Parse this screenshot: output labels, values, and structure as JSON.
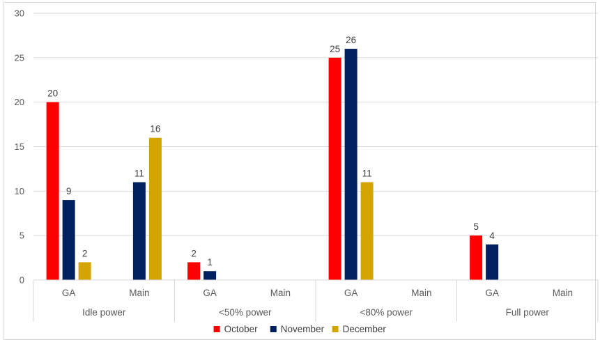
{
  "chart_data": {
    "type": "bar",
    "title": "",
    "xlabel": "",
    "ylabel": "",
    "ylim": [
      0,
      30
    ],
    "yticks": [
      0,
      5,
      10,
      15,
      20,
      25,
      30
    ],
    "grid": true,
    "legend_position": "bottom",
    "groups": [
      {
        "label": "Idle power",
        "subcategories": [
          "GA",
          "Main"
        ]
      },
      {
        "label": "<50% power",
        "subcategories": [
          "GA",
          "Main"
        ]
      },
      {
        "label": "<80% power",
        "subcategories": [
          "GA",
          "Main"
        ]
      },
      {
        "label": "Full power",
        "subcategories": [
          "GA",
          "Main"
        ]
      }
    ],
    "categories": [
      "GA",
      "Main",
      "GA",
      "Main",
      "GA",
      "Main",
      "GA",
      "Main"
    ],
    "series": [
      {
        "name": "October",
        "color": "#ff0000",
        "values": [
          20,
          null,
          2,
          null,
          25,
          null,
          5,
          null
        ]
      },
      {
        "name": "November",
        "color": "#002060",
        "values": [
          9,
          11,
          1,
          null,
          26,
          null,
          4,
          null
        ]
      },
      {
        "name": "December",
        "color": "#d4a500",
        "values": [
          2,
          16,
          null,
          null,
          11,
          null,
          null,
          null
        ]
      }
    ]
  }
}
